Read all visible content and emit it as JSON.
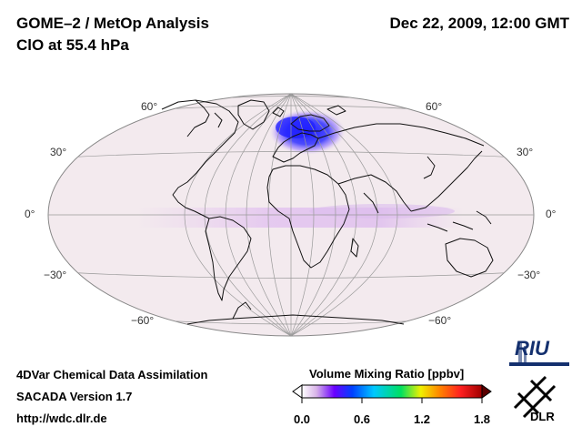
{
  "header": {
    "title": "GOME–2 / MetOp Analysis",
    "subtitle": "ClO at 55.4 hPa",
    "datetime": "Dec 22, 2009, 12:00 GMT"
  },
  "map": {
    "projection": "Hammer-Aitoff (Atlantic centred)",
    "lat_labels_left": [
      "60°",
      "30°",
      "0°",
      "−30°",
      "−60°"
    ],
    "lat_labels_right": [
      "60°",
      "30°",
      "0°",
      "−30°",
      "−60°"
    ],
    "features": [
      "polar ClO enhancement over Scandinavia/Arctic",
      "tropical band enhancement"
    ]
  },
  "footer": {
    "line1": "4DVar Chemical Data Assimilation",
    "line2": "SACADA Version 1.7",
    "line3": "http://wdc.dlr.de"
  },
  "colorbar": {
    "label": "Volume Mixing Ratio [ppbv]",
    "ticks": [
      "0.0",
      "0.6",
      "1.2",
      "1.8"
    ],
    "min": 0.0,
    "max": 1.8,
    "colors": [
      "#ffffff",
      "#d8b4e8",
      "#6a00ff",
      "#0040ff",
      "#00c8ff",
      "#00e060",
      "#f0f000",
      "#ff8000",
      "#ff2020",
      "#a00000"
    ]
  },
  "logos": {
    "riu": "RIU",
    "dlr": "DLR"
  }
}
